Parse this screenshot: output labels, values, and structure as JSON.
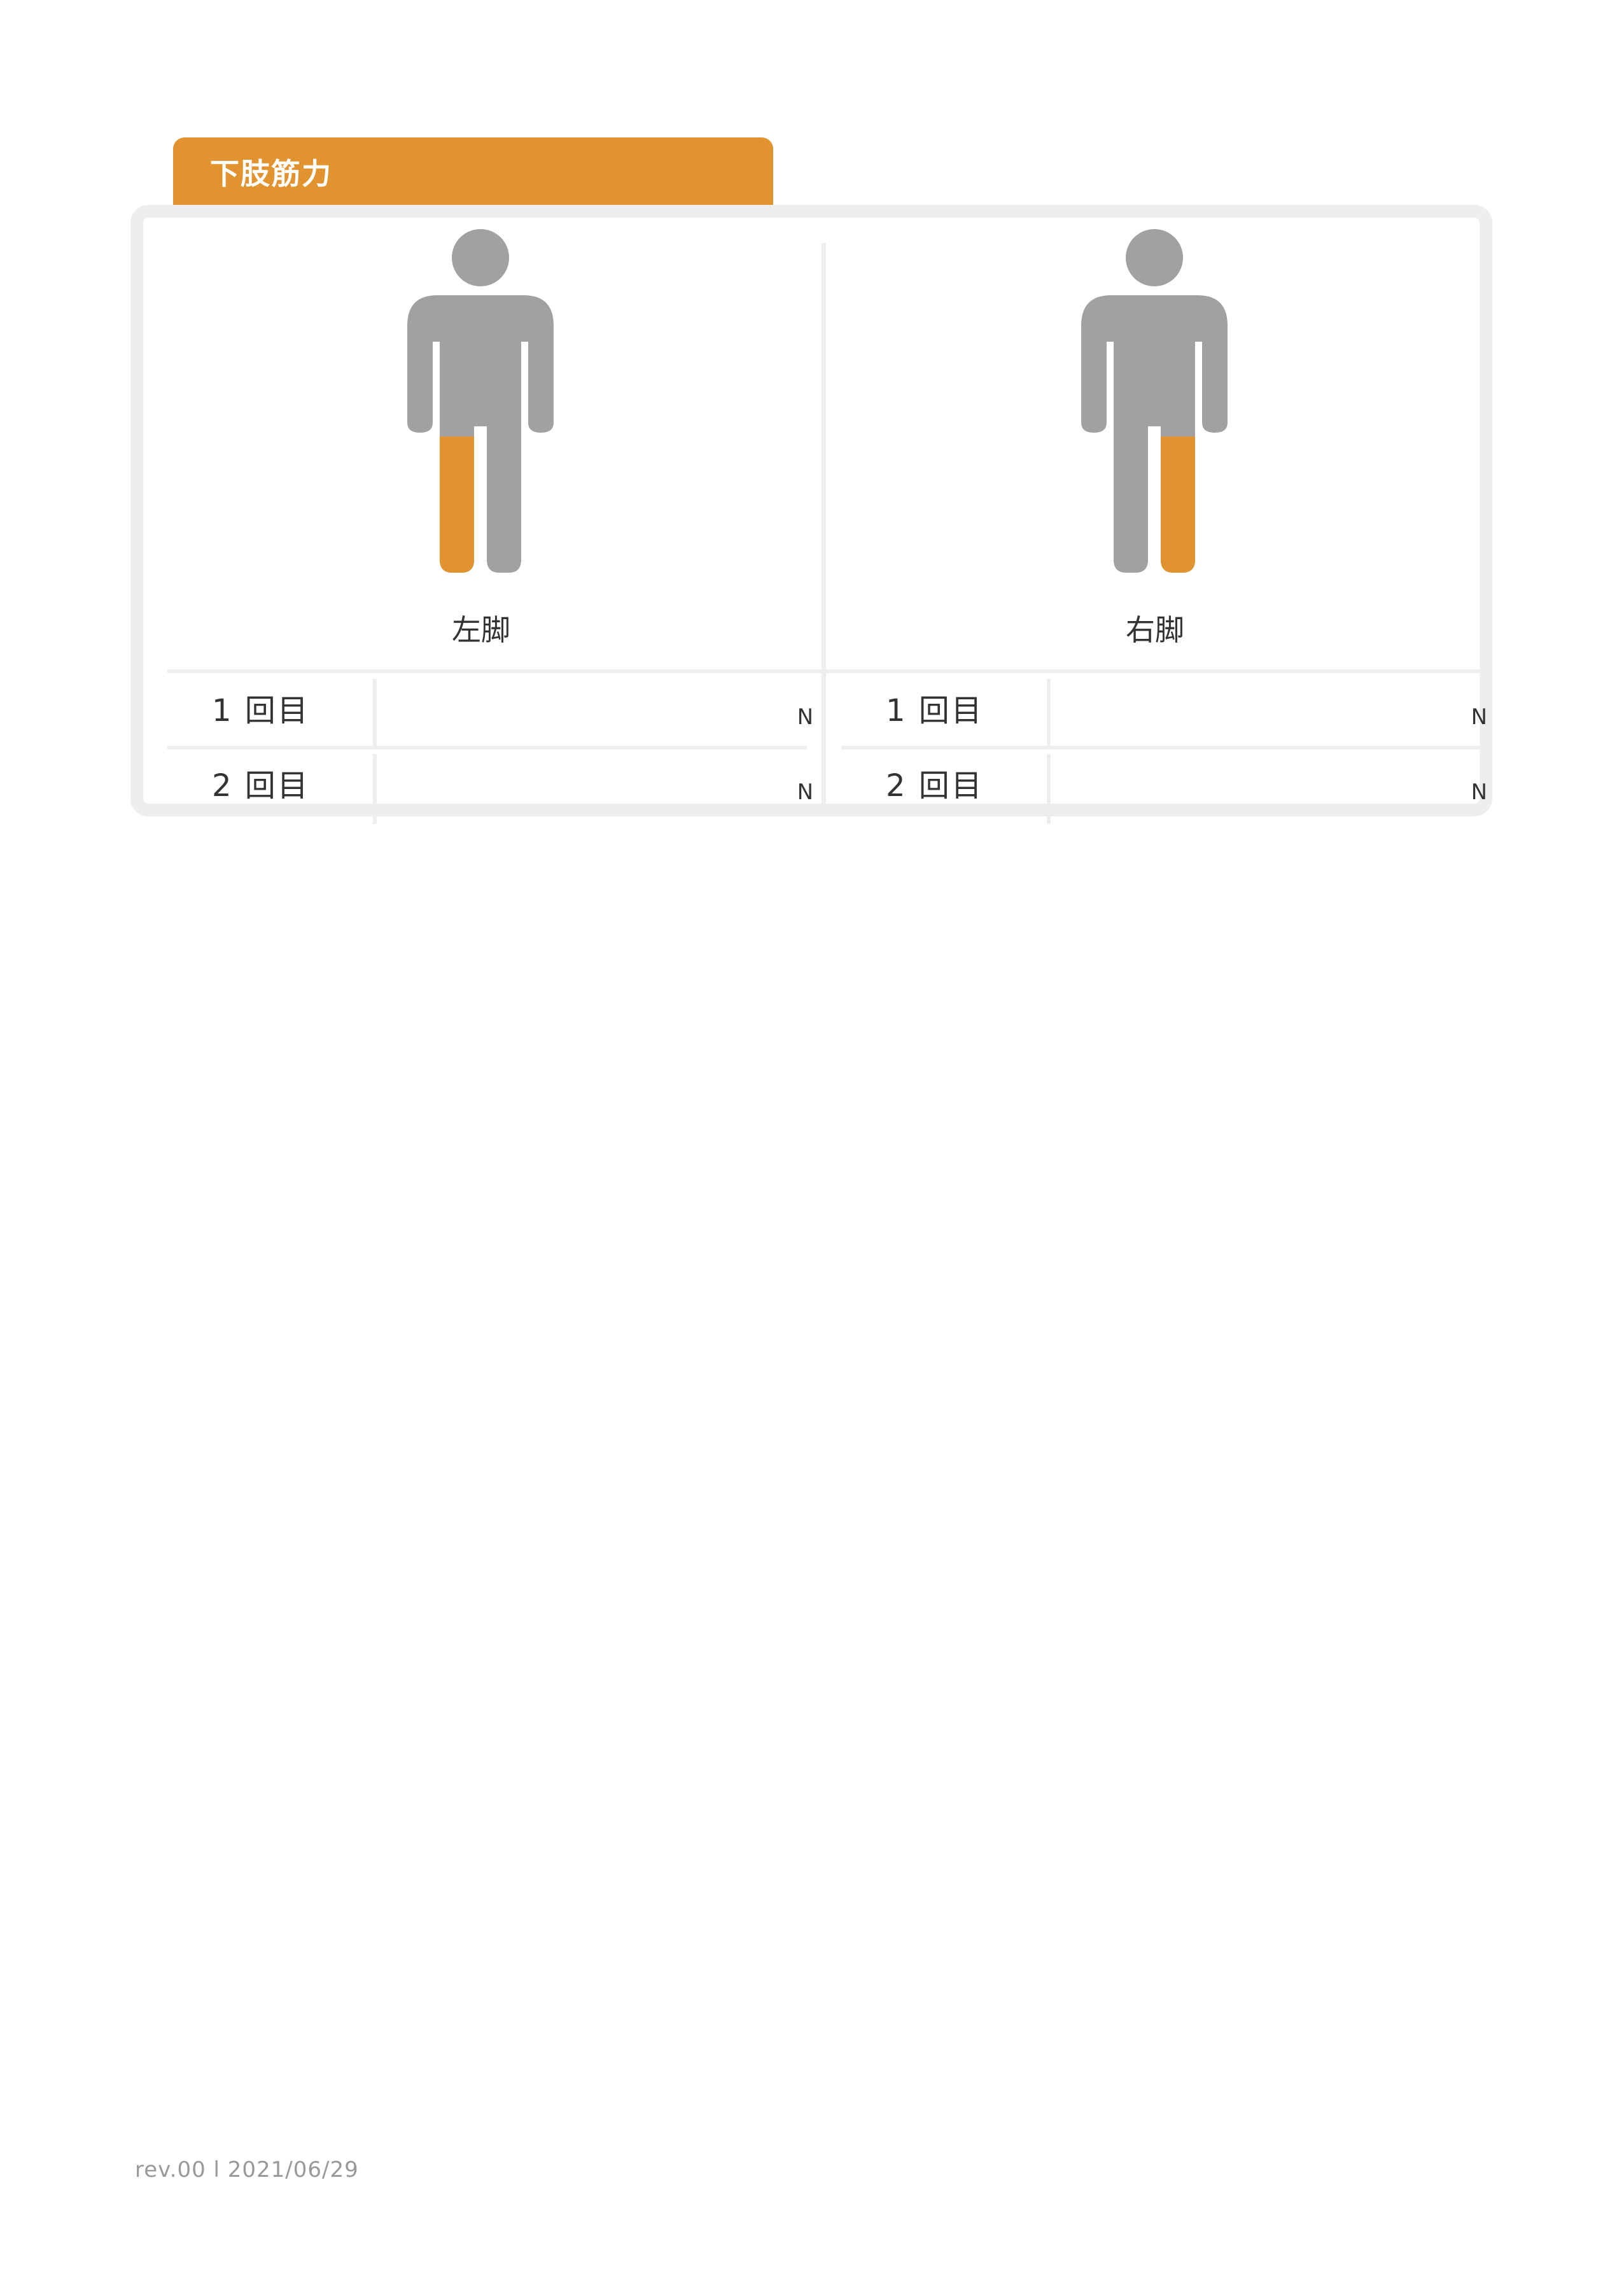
{
  "section": {
    "title": "下肢筋力"
  },
  "colors": {
    "accent": "#e1932f",
    "figure": "#a0a1a0",
    "border": "#eeeeee"
  },
  "left_leg": {
    "label": "左脚",
    "highlight": "left-leg",
    "rows": [
      {
        "label": "1 回目",
        "value": "",
        "unit": "N"
      },
      {
        "label": "2 回目",
        "value": "",
        "unit": "N"
      }
    ]
  },
  "right_leg": {
    "label": "右脚",
    "highlight": "right-leg",
    "rows": [
      {
        "label": "1 回目",
        "value": "",
        "unit": "N"
      },
      {
        "label": "2 回目",
        "value": "",
        "unit": "N"
      }
    ]
  },
  "footer": {
    "text": "rev.00 l 2021/06/29"
  }
}
